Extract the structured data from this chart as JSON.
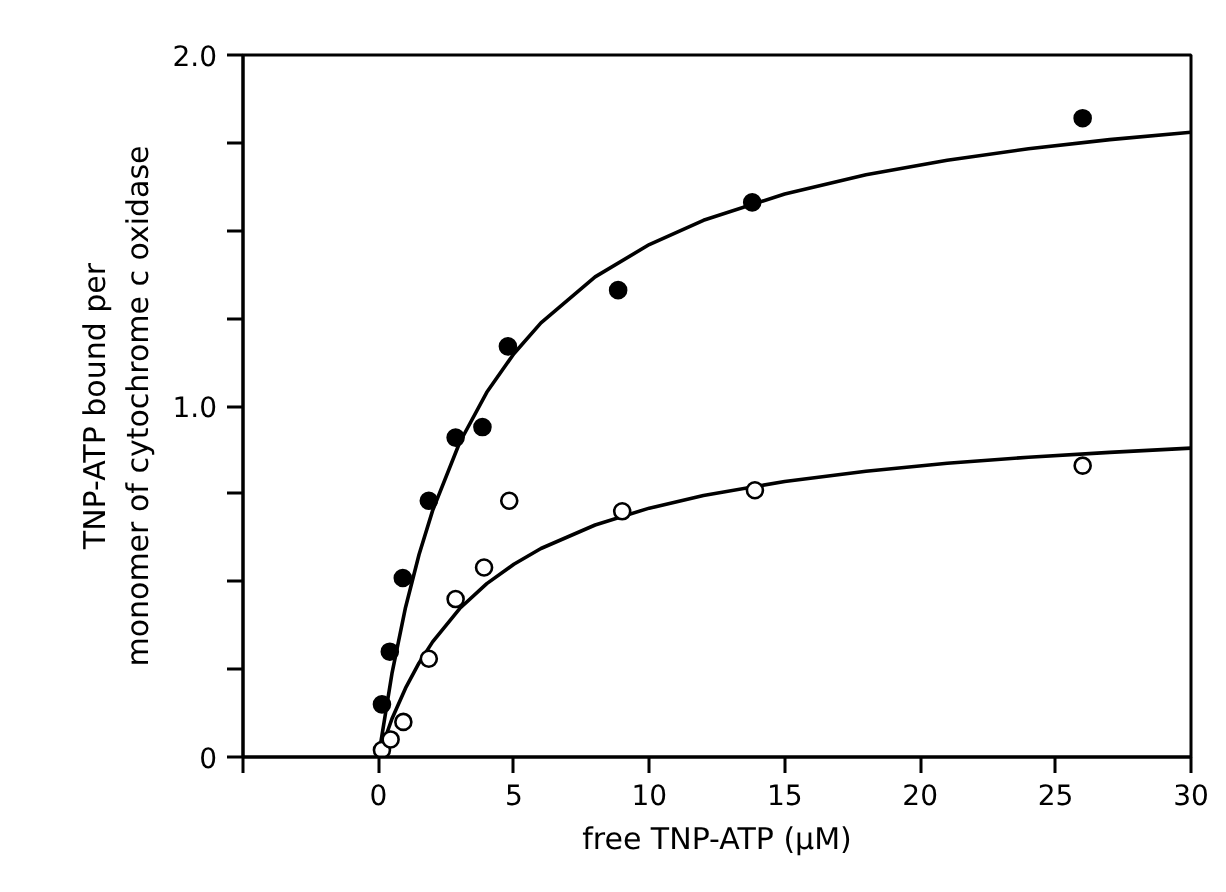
{
  "chart_data": {
    "type": "scatter",
    "xlabel": "free TNP-ATP (μM)",
    "ylabel": "TNP-ATP bound per\nmonomer of cytochrome c oxidase",
    "xlim": [
      -5,
      30
    ],
    "ylim": [
      0,
      2.0
    ],
    "xticks": [
      {
        "value": -5,
        "label": null
      },
      0,
      5,
      10,
      15,
      20,
      25,
      30
    ],
    "yticks": [
      {
        "value": 0,
        "label": "0"
      },
      {
        "value": 0.25,
        "label": null
      },
      {
        "value": 0.5,
        "label": null
      },
      {
        "value": 0.75,
        "label": null
      },
      {
        "value": 1.0,
        "label": "1.0"
      },
      {
        "value": 1.25,
        "label": null
      },
      {
        "value": 1.5,
        "label": null
      },
      {
        "value": 1.75,
        "label": null
      },
      {
        "value": 2.0,
        "label": "2.0"
      }
    ],
    "grid": false,
    "series": [
      {
        "marker": "circle",
        "color": "#000000",
        "x": [
          0.13,
          0.42,
          0.9,
          1.86,
          2.85,
          3.84,
          4.78,
          8.85,
          13.8,
          26.0
        ],
        "values": [
          0.15,
          0.3,
          0.51,
          0.73,
          0.91,
          0.94,
          1.17,
          1.33,
          1.58,
          1.82
        ]
      },
      {
        "marker": "circle",
        "color": "#ffffff",
        "x": [
          0.13,
          0.45,
          0.92,
          1.86,
          2.85,
          3.9,
          4.83,
          9.0,
          13.9,
          26.0
        ],
        "values": [
          0.02,
          0.05,
          0.1,
          0.28,
          0.45,
          0.54,
          0.73,
          0.7,
          0.76,
          0.83
        ]
      },
      {
        "type": "line",
        "marker": "none",
        "color": "#000000",
        "x": [
          0,
          0.5,
          1,
          1.5,
          2,
          3,
          4,
          5,
          6,
          8,
          10,
          12,
          15,
          18,
          21,
          24,
          27,
          30
        ],
        "values": [
          0,
          0.238,
          0.426,
          0.577,
          0.702,
          0.896,
          1.039,
          1.149,
          1.237,
          1.368,
          1.46,
          1.529,
          1.604,
          1.659,
          1.7,
          1.733,
          1.759,
          1.78
        ]
      },
      {
        "type": "line",
        "marker": "none",
        "color": "#000000",
        "x": [
          0,
          0.5,
          1,
          1.5,
          2,
          3,
          4,
          5,
          6,
          8,
          10,
          12,
          15,
          18,
          21,
          24,
          27,
          30
        ],
        "values": [
          0,
          0.109,
          0.196,
          0.268,
          0.328,
          0.423,
          0.494,
          0.549,
          0.594,
          0.661,
          0.709,
          0.745,
          0.785,
          0.814,
          0.837,
          0.854,
          0.868,
          0.88
        ]
      }
    ]
  }
}
